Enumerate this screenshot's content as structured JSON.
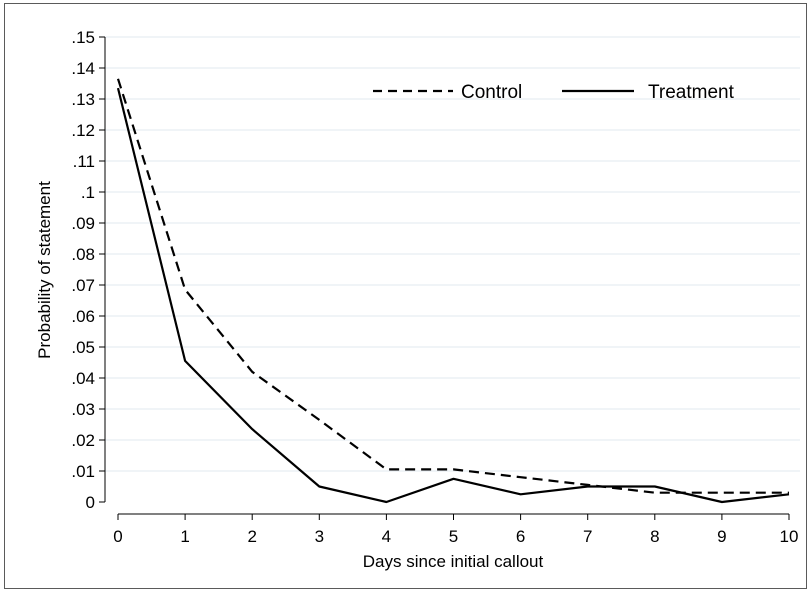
{
  "chart_data": {
    "type": "line",
    "xlabel": "Days since initial callout",
    "ylabel": "Probability of statement",
    "x": [
      0,
      1,
      2,
      3,
      4,
      5,
      6,
      7,
      8,
      9,
      10
    ],
    "xlim": [
      0,
      10
    ],
    "ylim": [
      0,
      0.15
    ],
    "xticks": [
      "0",
      "1",
      "2",
      "3",
      "4",
      "5",
      "6",
      "7",
      "8",
      "9",
      "10"
    ],
    "yticks": [
      {
        "value": 0.0,
        "label": "0"
      },
      {
        "value": 0.01,
        "label": ".01"
      },
      {
        "value": 0.02,
        "label": ".02"
      },
      {
        "value": 0.03,
        "label": ".03"
      },
      {
        "value": 0.04,
        "label": ".04"
      },
      {
        "value": 0.05,
        "label": ".05"
      },
      {
        "value": 0.06,
        "label": ".06"
      },
      {
        "value": 0.07,
        "label": ".07"
      },
      {
        "value": 0.08,
        "label": ".08"
      },
      {
        "value": 0.09,
        "label": ".09"
      },
      {
        "value": 0.1,
        "label": ".1"
      },
      {
        "value": 0.11,
        "label": ".11"
      },
      {
        "value": 0.12,
        "label": ".12"
      },
      {
        "value": 0.13,
        "label": ".13"
      },
      {
        "value": 0.14,
        "label": ".14"
      },
      {
        "value": 0.15,
        "label": ".15"
      }
    ],
    "grid": "horizontal",
    "legend_position": "top-right",
    "series": [
      {
        "name": "Control",
        "style": "dashed",
        "color": "#000000",
        "values": [
          0.1365,
          0.0685,
          0.042,
          0.0265,
          0.0105,
          0.0105,
          0.008,
          0.0055,
          0.003,
          0.003,
          0.003
        ]
      },
      {
        "name": "Treatment",
        "style": "solid",
        "color": "#000000",
        "values": [
          0.1335,
          0.0455,
          0.0235,
          0.005,
          0.0,
          0.0075,
          0.0025,
          0.005,
          0.005,
          0.0,
          0.0025
        ]
      }
    ]
  },
  "colors": {
    "grid": "#e8edf2",
    "axis": "#000000",
    "background": "#ffffff",
    "frame": "#5a5a5a"
  }
}
